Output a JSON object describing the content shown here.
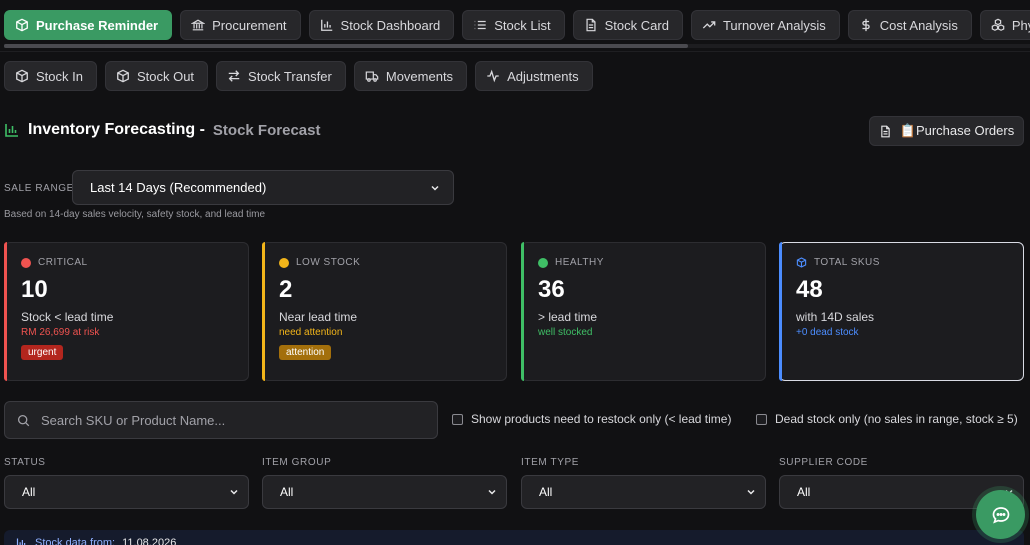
{
  "tabs": [
    {
      "label": "Purchase Reminder",
      "icon": "box-icon"
    },
    {
      "label": "Procurement",
      "icon": "bank-icon"
    },
    {
      "label": "Stock Dashboard",
      "icon": "bar-chart-icon"
    },
    {
      "label": "Stock List",
      "icon": "list-icon"
    },
    {
      "label": "Stock Card",
      "icon": "document-icon"
    },
    {
      "label": "Turnover Analysis",
      "icon": "trend-icon"
    },
    {
      "label": "Cost Analysis",
      "icon": "dollar-icon"
    },
    {
      "label": "Physi",
      "icon": "boxes-icon"
    }
  ],
  "active_tab": "Purchase Reminder",
  "subtabs": [
    {
      "label": "Stock In",
      "icon": "box-icon"
    },
    {
      "label": "Stock Out",
      "icon": "box-icon"
    },
    {
      "label": "Stock Transfer",
      "icon": "transfer-icon"
    },
    {
      "label": "Movements",
      "icon": "truck-icon"
    },
    {
      "label": "Adjustments",
      "icon": "activity-icon"
    }
  ],
  "header": {
    "title": "Inventory Forecasting -",
    "subtitle": "Stock Forecast",
    "po_button": "📋Purchase Orders"
  },
  "sale_range": {
    "label": "SALE RANGE",
    "selected": "Last 14 Days (Recommended)",
    "note": "Based on 14-day sales velocity, safety stock, and lead time"
  },
  "cards": [
    {
      "label": "CRITICAL",
      "value": "10",
      "desc": "Stock < lead time",
      "sub": "RM 26,699 at risk",
      "badge": "urgent",
      "color": "#ef5350"
    },
    {
      "label": "LOW STOCK",
      "value": "2",
      "desc": "Near lead time",
      "sub": "need attention",
      "badge": "attention",
      "color": "#f2b51a"
    },
    {
      "label": "HEALTHY",
      "value": "36",
      "desc": "> lead time",
      "sub": "well stocked",
      "color": "#3fbf66"
    },
    {
      "label": "TOTAL SKUS",
      "value": "48",
      "desc": "with 14D sales",
      "sub": "+0 dead stock",
      "color": "#4c8dff"
    }
  ],
  "search": {
    "placeholder": "Search SKU or Product Name..."
  },
  "checkboxes": [
    {
      "label": "Show products need to restock only (< lead time)",
      "checked": false
    },
    {
      "label": "Dead stock only (no sales in range, stock ≥ 5)",
      "checked": false
    }
  ],
  "filters": [
    {
      "label": "STATUS",
      "value": "All"
    },
    {
      "label": "ITEM GROUP",
      "value": "All"
    },
    {
      "label": "ITEM TYPE",
      "value": "All"
    },
    {
      "label": "SUPPLIER CODE",
      "value": "All"
    }
  ],
  "stock_data": {
    "label": "Stock data from:",
    "date": "11.08.2026"
  },
  "colors": {
    "accent": "#3a9a63",
    "critical": "#ef5350",
    "warning": "#f2b51a",
    "healthy": "#3fbf66",
    "info": "#4c8dff"
  }
}
